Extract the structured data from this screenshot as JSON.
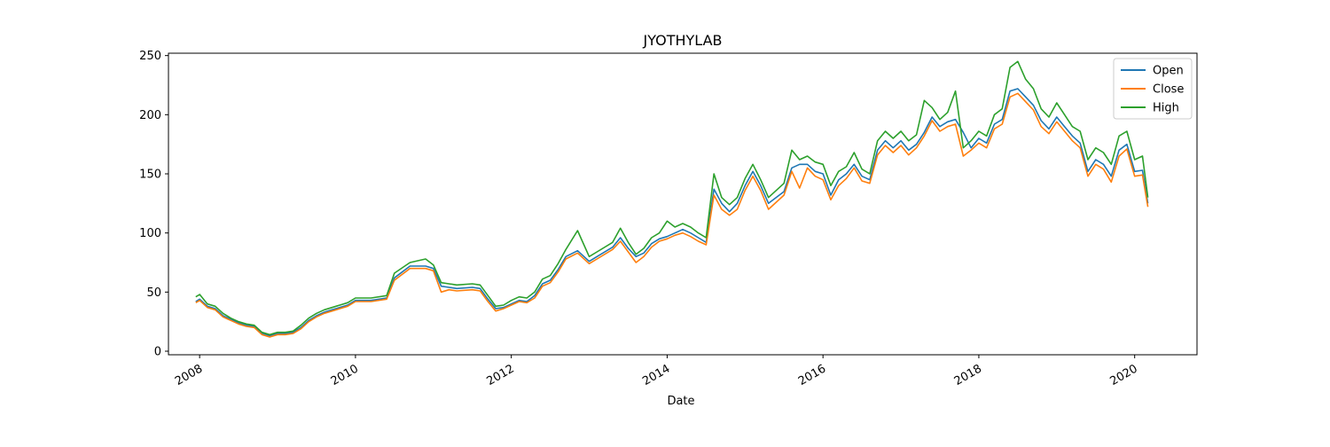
{
  "chart_data": {
    "type": "line",
    "title": "JYOTHYLAB",
    "xlabel": "Date",
    "ylabel": "",
    "xlim": [
      2007.6,
      2020.8
    ],
    "ylim": [
      -3,
      252
    ],
    "grid": false,
    "legend_position": "top-right",
    "x_ticks": [
      2008,
      2010,
      2012,
      2014,
      2016,
      2018,
      2020
    ],
    "x_tick_labels": [
      "2008",
      "2010",
      "2012",
      "2014",
      "2016",
      "2018",
      "2020"
    ],
    "y_ticks": [
      0,
      50,
      100,
      150,
      200,
      250
    ],
    "y_tick_labels": [
      "0",
      "50",
      "100",
      "150",
      "200",
      "250"
    ],
    "series": [
      {
        "name": "Open",
        "color": "#1f77b4",
        "x": [
          2007.95,
          2008.0,
          2008.1,
          2008.2,
          2008.3,
          2008.4,
          2008.5,
          2008.6,
          2008.7,
          2008.8,
          2008.9,
          2009.0,
          2009.1,
          2009.2,
          2009.3,
          2009.4,
          2009.5,
          2009.6,
          2009.7,
          2009.8,
          2009.9,
          2010.0,
          2010.2,
          2010.4,
          2010.5,
          2010.7,
          2010.9,
          2011.0,
          2011.1,
          2011.2,
          2011.3,
          2011.5,
          2011.6,
          2011.7,
          2011.8,
          2011.9,
          2012.0,
          2012.1,
          2012.2,
          2012.3,
          2012.4,
          2012.5,
          2012.6,
          2012.7,
          2012.85,
          2013.0,
          2013.1,
          2013.3,
          2013.4,
          2013.5,
          2013.6,
          2013.7,
          2013.8,
          2013.9,
          2014.0,
          2014.1,
          2014.2,
          2014.3,
          2014.4,
          2014.5,
          2014.6,
          2014.7,
          2014.8,
          2014.9,
          2015.0,
          2015.1,
          2015.2,
          2015.3,
          2015.5,
          2015.6,
          2015.7,
          2015.8,
          2015.9,
          2016.0,
          2016.1,
          2016.2,
          2016.3,
          2016.4,
          2016.5,
          2016.6,
          2016.7,
          2016.8,
          2016.9,
          2017.0,
          2017.1,
          2017.2,
          2017.3,
          2017.4,
          2017.5,
          2017.6,
          2017.7,
          2017.8,
          2017.9,
          2018.0,
          2018.1,
          2018.2,
          2018.3,
          2018.4,
          2018.5,
          2018.6,
          2018.7,
          2018.8,
          2018.9,
          2019.0,
          2019.1,
          2019.2,
          2019.3,
          2019.4,
          2019.5,
          2019.6,
          2019.7,
          2019.8,
          2019.9,
          2020.0,
          2020.1,
          2020.17
        ],
        "values": [
          42,
          44,
          38,
          36,
          30,
          27,
          24,
          22,
          21,
          15,
          13,
          15,
          15,
          16,
          20,
          26,
          30,
          33,
          35,
          37,
          39,
          43,
          43,
          45,
          62,
          72,
          72,
          70,
          55,
          54,
          53,
          54,
          53,
          44,
          36,
          37,
          40,
          43,
          42,
          47,
          57,
          60,
          69,
          80,
          85,
          76,
          80,
          88,
          96,
          87,
          80,
          83,
          91,
          95,
          97,
          100,
          103,
          100,
          96,
          92,
          137,
          125,
          118,
          125,
          140,
          152,
          140,
          125,
          135,
          155,
          158,
          158,
          152,
          150,
          132,
          145,
          150,
          158,
          148,
          145,
          170,
          178,
          172,
          178,
          170,
          175,
          185,
          198,
          190,
          194,
          196,
          185,
          172,
          180,
          176,
          192,
          196,
          220,
          222,
          215,
          208,
          195,
          188,
          198,
          190,
          182,
          176,
          152,
          162,
          158,
          148,
          170,
          175,
          152,
          153,
          125
        ]
      },
      {
        "name": "Close",
        "color": "#ff7f0e",
        "x": [
          2007.95,
          2008.0,
          2008.1,
          2008.2,
          2008.3,
          2008.4,
          2008.5,
          2008.6,
          2008.7,
          2008.8,
          2008.9,
          2009.0,
          2009.1,
          2009.2,
          2009.3,
          2009.4,
          2009.5,
          2009.6,
          2009.7,
          2009.8,
          2009.9,
          2010.0,
          2010.2,
          2010.4,
          2010.5,
          2010.7,
          2010.9,
          2011.0,
          2011.1,
          2011.2,
          2011.3,
          2011.5,
          2011.6,
          2011.7,
          2011.8,
          2011.9,
          2012.0,
          2012.1,
          2012.2,
          2012.3,
          2012.4,
          2012.5,
          2012.6,
          2012.7,
          2012.85,
          2013.0,
          2013.1,
          2013.3,
          2013.4,
          2013.5,
          2013.6,
          2013.7,
          2013.8,
          2013.9,
          2014.0,
          2014.1,
          2014.2,
          2014.3,
          2014.4,
          2014.5,
          2014.6,
          2014.7,
          2014.8,
          2014.9,
          2015.0,
          2015.1,
          2015.2,
          2015.3,
          2015.5,
          2015.6,
          2015.7,
          2015.8,
          2015.9,
          2016.0,
          2016.1,
          2016.2,
          2016.3,
          2016.4,
          2016.5,
          2016.6,
          2016.7,
          2016.8,
          2016.9,
          2017.0,
          2017.1,
          2017.2,
          2017.3,
          2017.4,
          2017.5,
          2017.6,
          2017.7,
          2017.8,
          2017.9,
          2018.0,
          2018.1,
          2018.2,
          2018.3,
          2018.4,
          2018.5,
          2018.6,
          2018.7,
          2018.8,
          2018.9,
          2019.0,
          2019.1,
          2019.2,
          2019.3,
          2019.4,
          2019.5,
          2019.6,
          2019.7,
          2019.8,
          2019.9,
          2020.0,
          2020.1,
          2020.17
        ],
        "values": [
          41,
          43,
          37,
          35,
          29,
          26,
          23,
          21,
          20,
          14,
          12,
          14,
          14,
          15,
          19,
          25,
          29,
          32,
          34,
          36,
          38,
          42,
          42,
          44,
          60,
          70,
          70,
          68,
          50,
          52,
          51,
          52,
          51,
          42,
          34,
          36,
          39,
          42,
          41,
          45,
          55,
          58,
          67,
          78,
          83,
          74,
          78,
          86,
          93,
          84,
          75,
          80,
          88,
          93,
          95,
          98,
          100,
          97,
          93,
          90,
          132,
          120,
          115,
          120,
          136,
          148,
          136,
          120,
          132,
          152,
          138,
          155,
          148,
          145,
          128,
          140,
          146,
          155,
          144,
          142,
          166,
          174,
          168,
          174,
          166,
          172,
          182,
          195,
          186,
          190,
          192,
          165,
          170,
          176,
          172,
          188,
          192,
          215,
          218,
          211,
          204,
          190,
          184,
          194,
          186,
          178,
          172,
          148,
          158,
          154,
          143,
          165,
          171,
          148,
          149,
          122
        ]
      },
      {
        "name": "High",
        "color": "#2ca02c",
        "x": [
          2007.95,
          2008.0,
          2008.1,
          2008.2,
          2008.3,
          2008.4,
          2008.5,
          2008.6,
          2008.7,
          2008.8,
          2008.9,
          2009.0,
          2009.1,
          2009.2,
          2009.3,
          2009.4,
          2009.5,
          2009.6,
          2009.7,
          2009.8,
          2009.9,
          2010.0,
          2010.2,
          2010.4,
          2010.5,
          2010.7,
          2010.9,
          2011.0,
          2011.1,
          2011.2,
          2011.3,
          2011.5,
          2011.6,
          2011.7,
          2011.8,
          2011.9,
          2012.0,
          2012.1,
          2012.2,
          2012.3,
          2012.4,
          2012.5,
          2012.6,
          2012.7,
          2012.85,
          2013.0,
          2013.1,
          2013.3,
          2013.4,
          2013.5,
          2013.6,
          2013.7,
          2013.8,
          2013.9,
          2014.0,
          2014.1,
          2014.2,
          2014.3,
          2014.4,
          2014.5,
          2014.6,
          2014.7,
          2014.8,
          2014.9,
          2015.0,
          2015.1,
          2015.2,
          2015.3,
          2015.5,
          2015.6,
          2015.7,
          2015.8,
          2015.9,
          2016.0,
          2016.1,
          2016.2,
          2016.3,
          2016.4,
          2016.5,
          2016.6,
          2016.7,
          2016.8,
          2016.9,
          2017.0,
          2017.1,
          2017.2,
          2017.3,
          2017.4,
          2017.5,
          2017.6,
          2017.7,
          2017.8,
          2017.9,
          2018.0,
          2018.1,
          2018.2,
          2018.3,
          2018.4,
          2018.5,
          2018.6,
          2018.7,
          2018.8,
          2018.9,
          2019.0,
          2019.1,
          2019.2,
          2019.3,
          2019.4,
          2019.5,
          2019.6,
          2019.7,
          2019.8,
          2019.9,
          2020.0,
          2020.1,
          2020.17
        ],
        "values": [
          46,
          48,
          40,
          38,
          32,
          28,
          25,
          23,
          22,
          16,
          14,
          16,
          16,
          17,
          22,
          28,
          32,
          35,
          37,
          39,
          41,
          45,
          45,
          47,
          66,
          75,
          78,
          73,
          58,
          57,
          56,
          57,
          56,
          47,
          38,
          39,
          43,
          46,
          45,
          50,
          61,
          64,
          74,
          86,
          102,
          80,
          84,
          92,
          104,
          92,
          82,
          87,
          96,
          100,
          110,
          105,
          108,
          105,
          100,
          96,
          150,
          130,
          124,
          130,
          146,
          158,
          145,
          130,
          142,
          170,
          162,
          165,
          160,
          158,
          140,
          152,
          156,
          168,
          154,
          150,
          178,
          186,
          180,
          186,
          178,
          183,
          212,
          206,
          196,
          202,
          220,
          172,
          178,
          186,
          182,
          200,
          205,
          240,
          245,
          230,
          222,
          205,
          198,
          210,
          200,
          190,
          186,
          162,
          172,
          168,
          158,
          182,
          186,
          162,
          165,
          130
        ]
      }
    ]
  }
}
